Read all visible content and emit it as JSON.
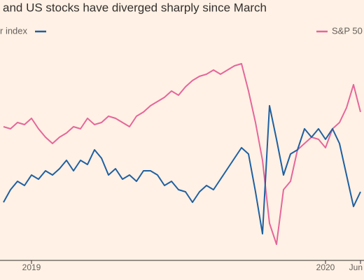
{
  "chart_data": {
    "type": "line",
    "title": "and US stocks have diverged sharply since March",
    "categories": [
      null,
      null,
      null,
      null,
      "2019",
      null,
      null,
      null,
      null,
      null,
      null,
      null,
      null,
      null,
      null,
      null,
      null,
      null,
      null,
      null,
      null,
      null,
      null,
      null,
      null,
      null,
      null,
      null,
      null,
      null,
      null,
      null,
      null,
      null,
      null,
      null,
      null,
      null,
      null,
      null,
      null,
      null,
      null,
      null,
      null,
      null,
      "2020",
      null,
      null,
      null,
      null,
      "Jun"
    ],
    "series": [
      {
        "name": "r index",
        "color": "#1f5fa0",
        "values": [
          27,
          33,
          37,
          35,
          40,
          38,
          42,
          40,
          43,
          47,
          42,
          47,
          45,
          52,
          48,
          40,
          43,
          38,
          40,
          37,
          42,
          42,
          40,
          35,
          37,
          33,
          32,
          27,
          32,
          35,
          33,
          38,
          43,
          48,
          53,
          50,
          32,
          12,
          73,
          57,
          40,
          50,
          52,
          62,
          58,
          62,
          57,
          62,
          55,
          40,
          25,
          32
        ]
      },
      {
        "name": "S&P 50",
        "color": "#e5669a",
        "values": [
          63,
          62,
          65,
          64,
          67,
          62,
          58,
          55,
          58,
          60,
          63,
          62,
          67,
          64,
          65,
          68,
          67,
          65,
          63,
          68,
          70,
          73,
          75,
          77,
          80,
          78,
          82,
          85,
          87,
          88,
          90,
          88,
          90,
          92,
          93,
          80,
          65,
          47,
          17,
          7,
          33,
          37,
          52,
          55,
          58,
          57,
          53,
          62,
          65,
          72,
          83,
          70
        ]
      }
    ],
    "ylim": [
      0,
      100
    ]
  }
}
